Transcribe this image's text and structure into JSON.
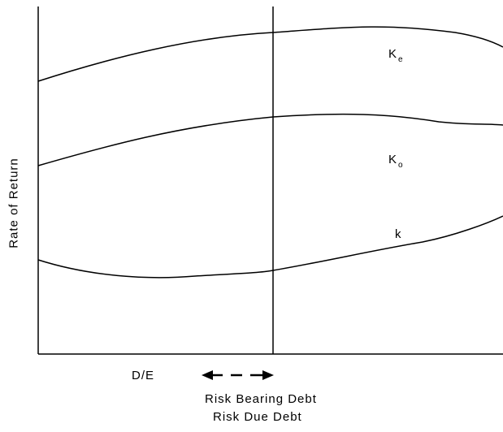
{
  "diagram": {
    "y_axis_label": "Rate of Return",
    "x_axis_label": "D/E",
    "curves": [
      {
        "id": "ke",
        "label_main": "K",
        "label_sub": "e"
      },
      {
        "id": "ko",
        "label_main": "K",
        "label_sub": "o"
      },
      {
        "id": "kd",
        "label_main": "k",
        "label_sub": ""
      }
    ],
    "annotation_line1": "Risk Bearing Debt",
    "annotation_line2": "Risk Due Debt",
    "annotation_icon": "double-headed-dashed-arrow-icon"
  }
}
